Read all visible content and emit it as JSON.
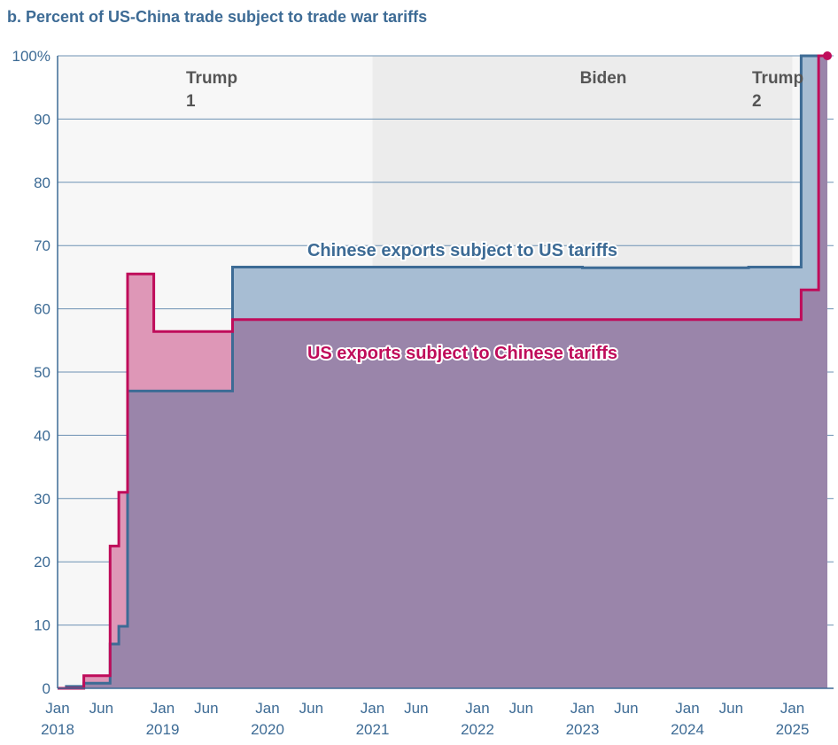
{
  "title": "b. Percent of US-China trade subject to trade war tariffs",
  "chart_data": {
    "type": "area",
    "title": "b. Percent of US-China trade subject to trade war tariffs",
    "xlabel": "",
    "ylabel": "",
    "ylim": [
      0,
      100
    ],
    "xlim": [
      "2018-01",
      "2025-05"
    ],
    "grid": true,
    "y_ticks": [
      0,
      10,
      20,
      30,
      40,
      50,
      60,
      70,
      80,
      90,
      100
    ],
    "y_tick_labels": [
      "0",
      "10",
      "20",
      "30",
      "40",
      "50",
      "60",
      "70",
      "80",
      "90",
      "100%"
    ],
    "x_ticks": [
      {
        "date": "2018-01",
        "top": "Jan",
        "bottom": "2018"
      },
      {
        "date": "2018-06",
        "top": "Jun",
        "bottom": ""
      },
      {
        "date": "2019-01",
        "top": "Jan",
        "bottom": "2019"
      },
      {
        "date": "2019-06",
        "top": "Jun",
        "bottom": ""
      },
      {
        "date": "2020-01",
        "top": "Jan",
        "bottom": "2020"
      },
      {
        "date": "2020-06",
        "top": "Jun",
        "bottom": ""
      },
      {
        "date": "2021-01",
        "top": "Jan",
        "bottom": "2021"
      },
      {
        "date": "2021-06",
        "top": "Jun",
        "bottom": ""
      },
      {
        "date": "2022-01",
        "top": "Jan",
        "bottom": "2022"
      },
      {
        "date": "2022-06",
        "top": "Jun",
        "bottom": ""
      },
      {
        "date": "2023-01",
        "top": "Jan",
        "bottom": "2023"
      },
      {
        "date": "2023-06",
        "top": "Jun",
        "bottom": ""
      },
      {
        "date": "2024-01",
        "top": "Jan",
        "bottom": "2024"
      },
      {
        "date": "2024-06",
        "top": "Jun",
        "bottom": ""
      },
      {
        "date": "2025-01",
        "top": "Jan",
        "bottom": "2025"
      }
    ],
    "periods": [
      {
        "label_lines": [
          "Trump",
          "1"
        ],
        "start": "2018-01",
        "end": "2021-01",
        "shade": "#f7f7f7"
      },
      {
        "label_lines": [
          "Biden"
        ],
        "start": "2021-01",
        "end": "2025-01",
        "shade": "#ececec"
      },
      {
        "label_lines": [
          "Trump",
          "2"
        ],
        "start": "2025-01",
        "end": "2025-05",
        "shade": "#f7f7f7"
      }
    ],
    "series": [
      {
        "name": "Chinese exports subject to US tariffs",
        "color": "#3d6b95",
        "fill": "#a7bdd3",
        "steps": [
          {
            "date": "2018-01",
            "value": 0
          },
          {
            "date": "2018-02",
            "value": 0.3
          },
          {
            "date": "2018-04",
            "value": 0.8
          },
          {
            "date": "2018-07",
            "value": 7
          },
          {
            "date": "2018-08",
            "value": 9.8
          },
          {
            "date": "2018-09",
            "value": 47
          },
          {
            "date": "2019-09",
            "value": 66.6
          },
          {
            "date": "2023-01",
            "value": 66.5
          },
          {
            "date": "2024-08",
            "value": 66.6
          },
          {
            "date": "2025-02",
            "value": 100
          }
        ],
        "end": "2025-05"
      },
      {
        "name": "US exports subject to Chinese tariffs",
        "color": "#bf0c5a",
        "fill": "#de97b7",
        "steps": [
          {
            "date": "2018-01",
            "value": 0
          },
          {
            "date": "2018-04",
            "value": 2
          },
          {
            "date": "2018-07",
            "value": 22.5
          },
          {
            "date": "2018-08",
            "value": 31
          },
          {
            "date": "2018-09",
            "value": 65.5
          },
          {
            "date": "2018-12",
            "value": 56.4
          },
          {
            "date": "2019-09",
            "value": 58.3
          },
          {
            "date": "2025-02",
            "value": 63
          },
          {
            "date": "2025-04",
            "value": 100
          }
        ],
        "end": "2025-05"
      }
    ],
    "overlap_fill": "#9a85aa",
    "annotations": [
      {
        "text": "Chinese exports subject to US tariffs",
        "color": "#3d6b95"
      },
      {
        "text": "US exports subject to Chinese tariffs",
        "color": "#bf0c5a"
      }
    ]
  }
}
